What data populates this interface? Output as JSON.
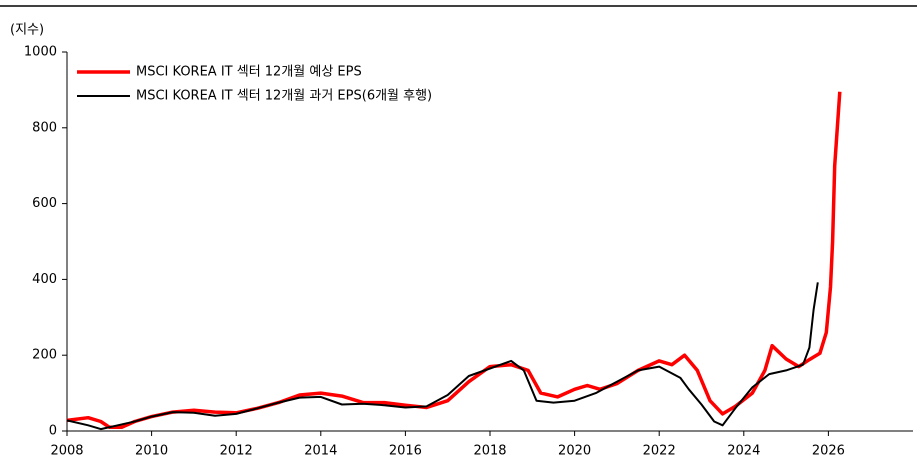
{
  "chart_data": {
    "type": "line",
    "ylabel": "(지수)",
    "xlim": [
      2008,
      2028
    ],
    "xticks": [
      2008,
      2010,
      2012,
      2014,
      2016,
      2018,
      2020,
      2022,
      2024,
      2026
    ],
    "ylim": [
      0,
      1000
    ],
    "yticks": [
      0,
      200,
      400,
      600,
      800,
      1000
    ],
    "legend": "upper left",
    "series": [
      {
        "name": "MSCI KOREA IT 섹터 12개월 예상 EPS",
        "color": "#ff0000",
        "x": [
          2008.0,
          2008.5,
          2008.8,
          2009.0,
          2009.3,
          2009.6,
          2010.0,
          2010.5,
          2011.0,
          2011.5,
          2012.0,
          2012.5,
          2013.0,
          2013.5,
          2014.0,
          2014.5,
          2015.0,
          2015.5,
          2016.0,
          2016.5,
          2017.0,
          2017.5,
          2018.0,
          2018.5,
          2018.9,
          2019.2,
          2019.6,
          2020.0,
          2020.3,
          2020.6,
          2021.0,
          2021.5,
          2022.0,
          2022.3,
          2022.6,
          2022.9,
          2023.2,
          2023.5,
          2023.8,
          2024.2,
          2024.5,
          2024.67,
          2025.0,
          2025.3,
          2025.5,
          2025.8,
          2025.95,
          2026.05,
          2026.1,
          2026.15,
          2026.27
        ],
        "values": [
          28,
          35,
          25,
          10,
          10,
          25,
          38,
          50,
          55,
          50,
          48,
          60,
          75,
          95,
          100,
          92,
          75,
          75,
          68,
          62,
          80,
          130,
          170,
          175,
          160,
          100,
          90,
          110,
          120,
          110,
          125,
          160,
          185,
          175,
          200,
          160,
          80,
          45,
          65,
          100,
          160,
          225,
          190,
          170,
          185,
          205,
          260,
          380,
          500,
          700,
          895
        ]
      },
      {
        "name": "MSCI KOREA IT 섹터 12개월 과거 EPS(6개월 후행)",
        "color": "#000000",
        "x": [
          2008.0,
          2008.5,
          2008.8,
          2009.2,
          2009.6,
          2010.0,
          2010.5,
          2011.0,
          2011.5,
          2012.0,
          2012.5,
          2013.0,
          2013.5,
          2014.0,
          2014.5,
          2015.0,
          2015.5,
          2016.0,
          2016.5,
          2017.0,
          2017.5,
          2018.0,
          2018.5,
          2018.8,
          2019.1,
          2019.5,
          2020.0,
          2020.5,
          2021.0,
          2021.5,
          2022.0,
          2022.5,
          2022.7,
          2023.0,
          2023.3,
          2023.5,
          2023.8,
          2024.2,
          2024.6,
          2025.0,
          2025.4,
          2025.55,
          2025.65,
          2025.75
        ],
        "values": [
          28,
          15,
          5,
          15,
          25,
          38,
          50,
          48,
          40,
          45,
          60,
          75,
          88,
          90,
          70,
          72,
          68,
          62,
          65,
          95,
          145,
          165,
          185,
          160,
          80,
          75,
          80,
          100,
          130,
          160,
          170,
          140,
          110,
          70,
          25,
          15,
          60,
          115,
          150,
          160,
          175,
          220,
          320,
          392
        ]
      }
    ]
  }
}
